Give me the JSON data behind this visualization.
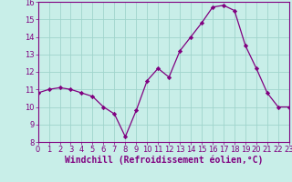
{
  "x": [
    0,
    1,
    2,
    3,
    4,
    5,
    6,
    7,
    8,
    9,
    10,
    11,
    12,
    13,
    14,
    15,
    16,
    17,
    18,
    19,
    20,
    21,
    22,
    23
  ],
  "y": [
    10.8,
    11.0,
    11.1,
    11.0,
    10.8,
    10.6,
    10.0,
    9.6,
    8.3,
    9.8,
    11.5,
    12.2,
    11.7,
    13.2,
    14.0,
    14.8,
    15.7,
    15.8,
    15.5,
    13.5,
    12.2,
    10.8,
    10.0,
    10.0
  ],
  "line_color": "#800080",
  "marker": "D",
  "marker_size": 2.2,
  "bg_color": "#c8eee8",
  "grid_color": "#a0d4cc",
  "xlabel": "Windchill (Refroidissement éolien,°C)",
  "xlabel_color": "#800080",
  "tick_color": "#800080",
  "ylim": [
    8,
    16
  ],
  "xlim": [
    0,
    23
  ],
  "yticks": [
    8,
    9,
    10,
    11,
    12,
    13,
    14,
    15,
    16
  ],
  "xticks": [
    0,
    1,
    2,
    3,
    4,
    5,
    6,
    7,
    8,
    9,
    10,
    11,
    12,
    13,
    14,
    15,
    16,
    17,
    18,
    19,
    20,
    21,
    22,
    23
  ],
  "tick_fontsize": 6,
  "xlabel_fontsize": 7
}
